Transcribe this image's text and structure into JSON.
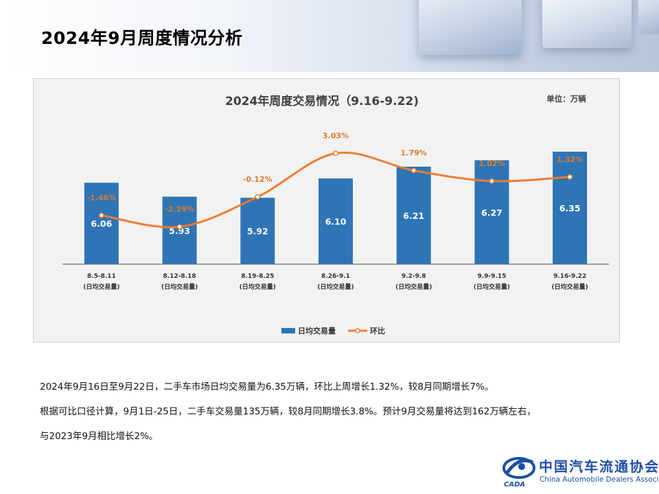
{
  "page": {
    "title": "2024年9月周度情况分析",
    "paragraphs": [
      "2024年9月16日至9月22日，二手车市场日均交易量为6.35万辆，环比上周增长1.32%，较8月同期增长7%。",
      "根据可比口径计算，9月1日-25日，二手车交易量135万辆，较8月同期增长3.8%。预计9月交易量将达到162万辆左右，",
      "与2023年9月相比增长2%。"
    ]
  },
  "logo": {
    "org_cn": "中国汽车流通协会",
    "org_en": "China Automobile Dealers Association",
    "mark_text": "CADA"
  },
  "colors": {
    "bar": "#2e75b6",
    "line": "#ed7d31",
    "label_orange": "#e07b28",
    "title_gray": "#404040",
    "axis": "#7f7f7f"
  },
  "chart_data": {
    "type": "bar",
    "title": "2024年周度交易情况（9.16-9.22)",
    "unit": "单位：万辆",
    "categories": [
      "8.5-8.11",
      "8.12-8.18",
      "8.19-8.25",
      "8.26-9.1",
      "9.2-9.8",
      "9.9-9.15",
      "9.16-9.22"
    ],
    "category_sublabel": "(日均交易量)",
    "series": [
      {
        "name": "日均交易量",
        "type": "bar",
        "values": [
          6.06,
          5.93,
          5.92,
          6.1,
          6.21,
          6.27,
          6.35
        ]
      },
      {
        "name": "环比",
        "type": "line",
        "values": [
          -1.46,
          -2.29,
          -0.12,
          3.03,
          1.79,
          1.02,
          1.32
        ],
        "labels": [
          "-1.46%",
          "-2.29%",
          "-0.12%",
          "3.03%",
          "1.79%",
          "1.02%",
          "1.32%"
        ]
      }
    ],
    "bar_labels": [
      "6.06",
      "5.93",
      "5.92",
      "6.10",
      "6.21",
      "6.27",
      "6.35"
    ],
    "legend_position": "bottom",
    "grid": false
  }
}
